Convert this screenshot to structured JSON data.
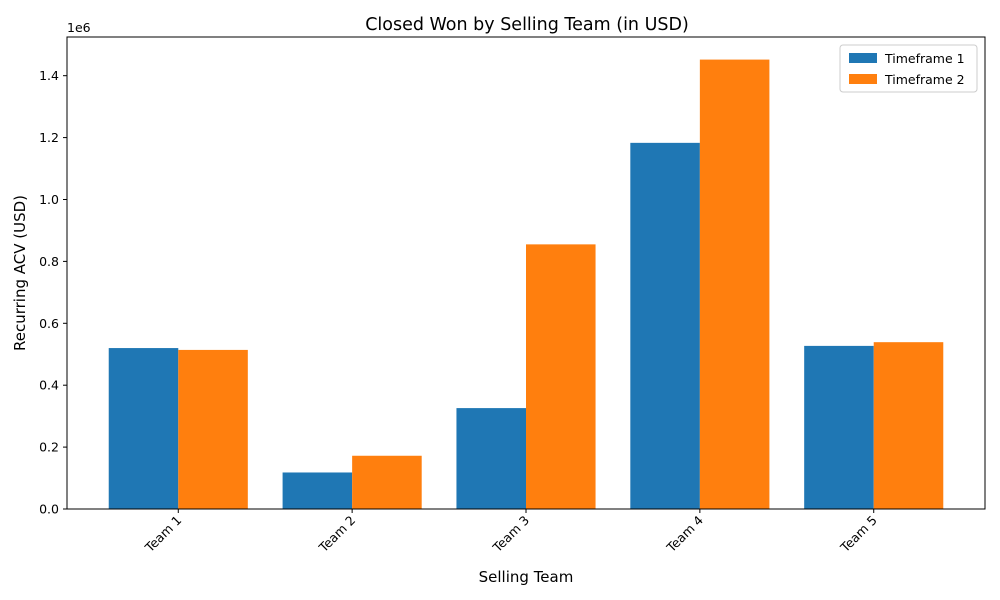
{
  "chart_data": {
    "type": "bar",
    "title": "Closed Won by Selling Team (in USD)",
    "xlabel": "Selling Team",
    "ylabel": "Recurring ACV (USD)",
    "y_offset_text": "1e6",
    "categories": [
      "Team 1",
      "Team 2",
      "Team 3",
      "Team 4",
      "Team 5"
    ],
    "series": [
      {
        "name": "Timeframe 1",
        "color": "#1f77b4",
        "values": [
          520000,
          118000,
          326000,
          1183000,
          527000
        ]
      },
      {
        "name": "Timeframe 2",
        "color": "#ff7f0e",
        "values": [
          514000,
          172000,
          855000,
          1452000,
          539000
        ]
      }
    ],
    "ylim": [
      0,
      1525000
    ],
    "yticks": [
      0,
      200000,
      400000,
      600000,
      800000,
      1000000,
      1200000,
      1400000
    ],
    "ytick_labels": [
      "0.0",
      "0.2",
      "0.4",
      "0.6",
      "0.8",
      "1.0",
      "1.2",
      "1.4"
    ],
    "legend_position": "top-right",
    "grid": false
  }
}
